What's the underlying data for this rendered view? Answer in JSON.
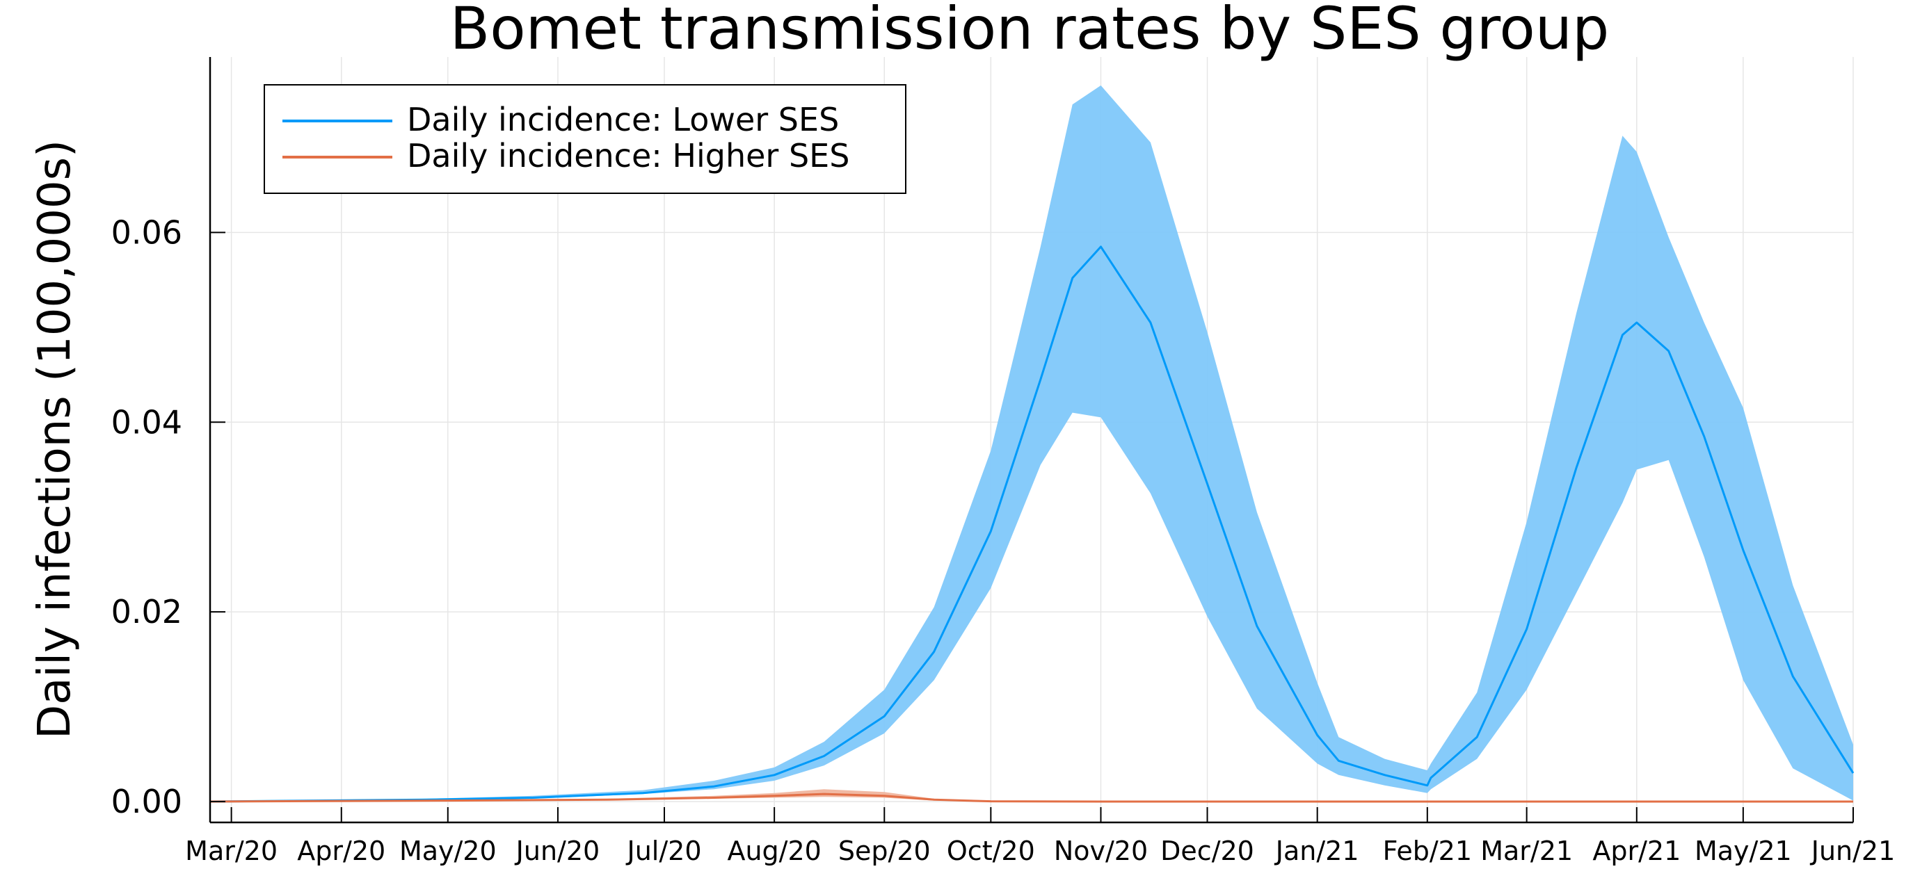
{
  "chart_data": {
    "type": "line",
    "title": "Bomet transmission rates by SES group",
    "xlabel": "",
    "ylabel": "Daily infections (100,000s)",
    "x_ticks": [
      "Mar/20",
      "Apr/20",
      "May/20",
      "Jun/20",
      "Jul/20",
      "Aug/20",
      "Sep/20",
      "Oct/20",
      "Nov/20",
      "Dec/20",
      "Jan/21",
      "Feb/21",
      "Mar/21",
      "Apr/21",
      "May/21",
      "Jun/21"
    ],
    "y_ticks": [
      "0.00",
      "0.02",
      "0.04",
      "0.06"
    ],
    "ylim": [
      -0.0022,
      0.0785
    ],
    "xlim": [
      "2020-02-24",
      "2021-06-01"
    ],
    "grid": true,
    "legend_position": "top-left",
    "colors": {
      "lower": "#009AF9",
      "lower_band": "#7FC8FA",
      "higher": "#E26F46",
      "higher_band": "#F0B59E"
    },
    "series": [
      {
        "name": "Daily incidence: Lower SES",
        "color_key": "lower",
        "x": [
          "2020-02-24",
          "2020-03-25",
          "2020-04-25",
          "2020-05-25",
          "2020-06-25",
          "2020-07-15",
          "2020-08-01",
          "2020-08-15",
          "2020-09-01",
          "2020-09-15",
          "2020-10-01",
          "2020-10-15",
          "2020-10-24",
          "2020-11-01",
          "2020-11-15",
          "2020-12-01",
          "2020-12-15",
          "2021-01-01",
          "2021-01-07",
          "2021-01-20",
          "2021-02-01",
          "2021-02-02",
          "2021-02-15",
          "2021-03-01",
          "2021-03-15",
          "2021-03-28",
          "2021-04-01",
          "2021-04-10",
          "2021-04-20",
          "2021-05-01",
          "2021-05-15",
          "2021-06-01"
        ],
        "values": [
          0,
          0.0001,
          0.0002,
          0.0004,
          0.0009,
          0.0016,
          0.0028,
          0.0048,
          0.009,
          0.0158,
          0.0285,
          0.0445,
          0.0552,
          0.0585,
          0.0505,
          0.0335,
          0.0185,
          0.007,
          0.0043,
          0.0028,
          0.0017,
          0.0025,
          0.0068,
          0.0182,
          0.0352,
          0.0492,
          0.0505,
          0.0475,
          0.0385,
          0.0265,
          0.0132,
          0.003
        ],
        "lower": [
          0,
          0.0001,
          0.0002,
          0.0003,
          0.0008,
          0.0013,
          0.0022,
          0.0038,
          0.0072,
          0.0128,
          0.0225,
          0.0355,
          0.041,
          0.0405,
          0.0325,
          0.0195,
          0.0098,
          0.004,
          0.0028,
          0.0017,
          0.0009,
          0.0013,
          0.0045,
          0.0118,
          0.022,
          0.0315,
          0.035,
          0.036,
          0.0258,
          0.0128,
          0.0035,
          0.0001
        ],
        "upper": [
          0,
          0.0001,
          0.0003,
          0.0006,
          0.0012,
          0.0022,
          0.0036,
          0.0063,
          0.0118,
          0.0205,
          0.037,
          0.0585,
          0.0735,
          0.0755,
          0.0695,
          0.0495,
          0.0305,
          0.0125,
          0.0068,
          0.0045,
          0.0033,
          0.004,
          0.0115,
          0.0295,
          0.0515,
          0.0702,
          0.0685,
          0.0595,
          0.0505,
          0.0415,
          0.0228,
          0.006
        ]
      },
      {
        "name": "Daily incidence: Higher SES",
        "color_key": "higher",
        "x": [
          "2020-02-24",
          "2020-05-01",
          "2020-06-15",
          "2020-07-15",
          "2020-08-01",
          "2020-08-15",
          "2020-09-01",
          "2020-09-15",
          "2020-10-01",
          "2020-11-01",
          "2021-06-01"
        ],
        "values": [
          0,
          0.0001,
          0.0002,
          0.0004,
          0.0006,
          0.0008,
          0.0006,
          0.0002,
          3e-05,
          0,
          0
        ],
        "lower": [
          0,
          5e-05,
          0.00015,
          0.0003,
          0.0004,
          0.0005,
          0.0004,
          0.0001,
          2e-05,
          0,
          0
        ],
        "upper": [
          0,
          0.00015,
          0.0003,
          0.0006,
          0.0009,
          0.0013,
          0.001,
          0.0003,
          5e-05,
          0,
          0
        ]
      }
    ]
  }
}
